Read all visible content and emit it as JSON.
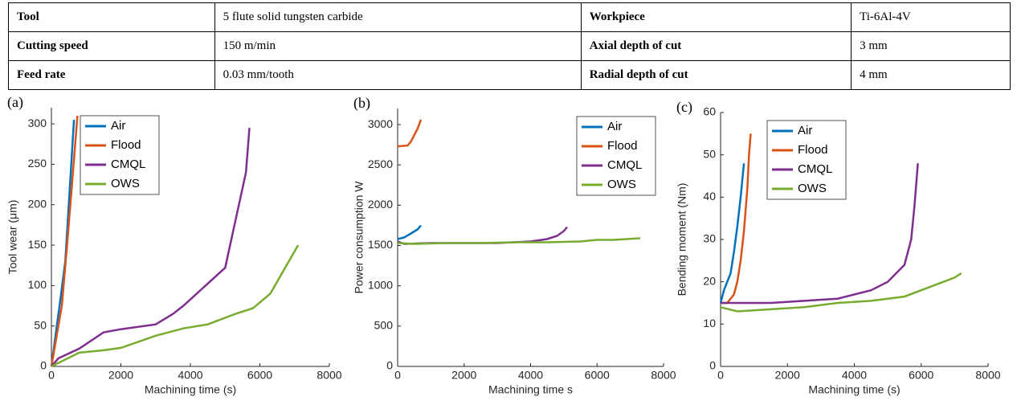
{
  "table": {
    "rows": [
      [
        "Tool",
        "5 flute solid tungsten carbide",
        "Workpiece",
        "Ti-6Al-4V"
      ],
      [
        "Cutting speed",
        "150 m/min",
        "Axial depth of cut",
        "3 mm"
      ],
      [
        "Feed rate",
        "0.03 mm/tooth",
        "Radial depth of cut",
        "4 mm"
      ]
    ]
  },
  "chart_data": [
    {
      "type": "line",
      "panel_label": "(a)",
      "xlabel": "Machining time (s)",
      "ylabel": "Tool wear (μm)",
      "xlim": [
        0,
        8000
      ],
      "xticks": [
        0,
        2000,
        4000,
        6000,
        8000
      ],
      "ylim": [
        0,
        320
      ],
      "yticks": [
        0,
        50,
        100,
        150,
        200,
        250,
        300
      ],
      "legend": "upper left",
      "series": [
        {
          "name": "Air",
          "color": "#0072bd",
          "x": [
            0,
            250,
            400,
            650
          ],
          "values": [
            0,
            80,
            130,
            305
          ]
        },
        {
          "name": "Flood",
          "color": "#d95319",
          "x": [
            0,
            300,
            450,
            600,
            750
          ],
          "values": [
            0,
            75,
            150,
            230,
            310
          ]
        },
        {
          "name": "CMQL",
          "color": "#7e2f8e",
          "x": [
            0,
            200,
            800,
            1500,
            2000,
            3000,
            3500,
            3800,
            5000,
            5600,
            5700
          ],
          "values": [
            0,
            10,
            22,
            42,
            46,
            52,
            65,
            75,
            122,
            240,
            295
          ]
        },
        {
          "name": "OWS",
          "color": "#77ac30",
          "x": [
            0,
            800,
            1500,
            2000,
            3000,
            3800,
            4500,
            5300,
            5800,
            6300,
            7100
          ],
          "values": [
            0,
            17,
            20,
            23,
            38,
            47,
            52,
            65,
            72,
            90,
            150
          ]
        }
      ]
    },
    {
      "type": "line",
      "panel_label": "(b)",
      "xlabel": "Machining time s",
      "ylabel": "Power consumption W",
      "xlim": [
        0,
        8000
      ],
      "xticks": [
        0,
        2000,
        4000,
        6000,
        8000
      ],
      "ylim": [
        0,
        3200
      ],
      "yticks": [
        0,
        500,
        1000,
        1500,
        2000,
        2500,
        3000
      ],
      "legend": "upper right",
      "series": [
        {
          "name": "Air",
          "color": "#0072bd",
          "x": [
            0,
            200,
            400,
            600,
            700
          ],
          "values": [
            1580,
            1600,
            1650,
            1700,
            1750
          ]
        },
        {
          "name": "Flood",
          "color": "#d95319",
          "x": [
            0,
            300,
            400,
            500,
            600,
            700
          ],
          "values": [
            2730,
            2740,
            2790,
            2870,
            2950,
            3060
          ]
        },
        {
          "name": "CMQL",
          "color": "#7e2f8e",
          "x": [
            0,
            200,
            1000,
            2000,
            3000,
            4000,
            4500,
            4800,
            5000,
            5100
          ],
          "values": [
            1550,
            1520,
            1530,
            1530,
            1530,
            1550,
            1580,
            1620,
            1680,
            1730
          ]
        },
        {
          "name": "OWS",
          "color": "#77ac30",
          "x": [
            0,
            500,
            1500,
            2500,
            3500,
            4500,
            5500,
            6000,
            6500,
            7300
          ],
          "values": [
            1530,
            1520,
            1530,
            1530,
            1540,
            1540,
            1550,
            1570,
            1570,
            1590
          ]
        }
      ]
    },
    {
      "type": "line",
      "panel_label": "(c)",
      "xlabel": "Machining time (s)",
      "ylabel": "Bending moment (Nm)",
      "xlim": [
        0,
        8000
      ],
      "xticks": [
        0,
        2000,
        4000,
        6000,
        8000
      ],
      "ylim": [
        0,
        60
      ],
      "yticks": [
        0,
        10,
        20,
        30,
        40,
        50,
        60
      ],
      "legend": "upper left",
      "series": [
        {
          "name": "Air",
          "color": "#0072bd",
          "x": [
            0,
            100,
            200,
            300,
            400,
            500,
            600,
            700
          ],
          "values": [
            15,
            18,
            20,
            22,
            27,
            33,
            40,
            48
          ]
        },
        {
          "name": "Flood",
          "color": "#d95319",
          "x": [
            0,
            200,
            400,
            500,
            600,
            700,
            800,
            850,
            900
          ],
          "values": [
            15,
            15,
            17,
            20,
            25,
            32,
            42,
            50,
            55
          ]
        },
        {
          "name": "CMQL",
          "color": "#7e2f8e",
          "x": [
            0,
            500,
            1500,
            2500,
            3500,
            4500,
            5000,
            5500,
            5700,
            5800,
            5900
          ],
          "values": [
            15,
            15,
            15,
            15.5,
            16,
            18,
            20,
            24,
            30,
            38,
            48
          ]
        },
        {
          "name": "OWS",
          "color": "#77ac30",
          "x": [
            0,
            500,
            1500,
            2500,
            3500,
            4500,
            5500,
            6000,
            6500,
            7000,
            7200
          ],
          "values": [
            14,
            13,
            13.5,
            14,
            15,
            15.5,
            16.5,
            18,
            19.5,
            21,
            22
          ]
        }
      ]
    }
  ]
}
